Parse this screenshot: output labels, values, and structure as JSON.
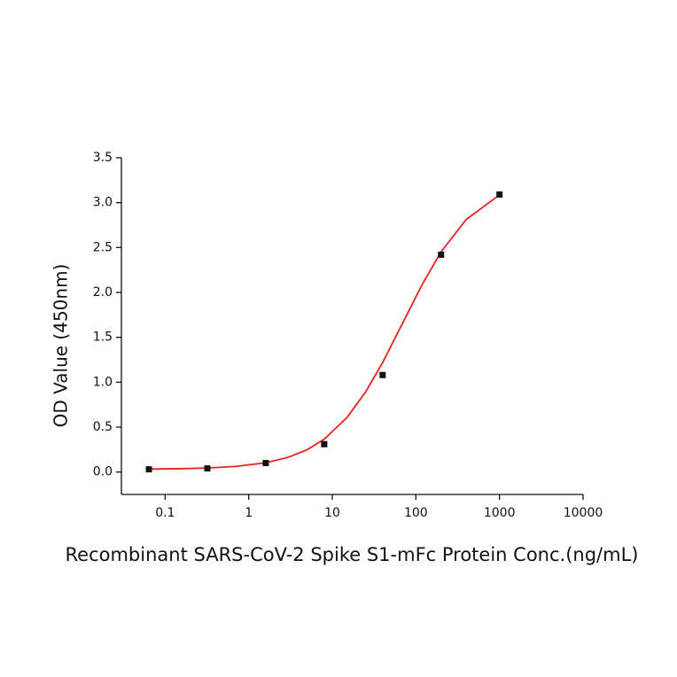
{
  "chart_data": {
    "type": "line",
    "x_label": "Recombinant SARS-CoV-2 Spike S1-mFc Protein Conc.(ng/mL)",
    "y_label": "OD Value (450nm)",
    "xscale": "log",
    "xlim": [
      0.03,
      10000
    ],
    "xticks": [
      0.1,
      1,
      10,
      100,
      1000,
      10000
    ],
    "ylim": [
      -0.25,
      3.5
    ],
    "yticks": [
      {
        "value": 0,
        "label": "0.0"
      },
      0.5,
      {
        "value": 1,
        "label": "1.0"
      },
      1.5,
      {
        "value": 2,
        "label": "2.0"
      },
      2.5,
      {
        "value": 3,
        "label": "3.0"
      },
      3.5
    ],
    "grid": false,
    "series": [
      {
        "style": "line",
        "color": "#e8221e",
        "x": [
          0.064,
          0.15,
          0.32,
          0.7,
          1.6,
          3,
          5,
          8,
          15,
          25,
          40,
          70,
          120,
          200,
          400,
          1000
        ],
        "values": [
          0.033,
          0.037,
          0.045,
          0.062,
          0.103,
          0.165,
          0.248,
          0.365,
          0.607,
          0.891,
          1.219,
          1.665,
          2.095,
          2.452,
          2.813,
          3.086
        ]
      },
      {
        "style": "marker",
        "color": "#111111",
        "x": [
          0.064,
          0.32,
          1.6,
          8,
          40,
          200,
          1000
        ],
        "values": [
          0.03,
          0.04,
          0.1,
          0.31,
          1.08,
          2.42,
          3.09
        ]
      }
    ]
  }
}
